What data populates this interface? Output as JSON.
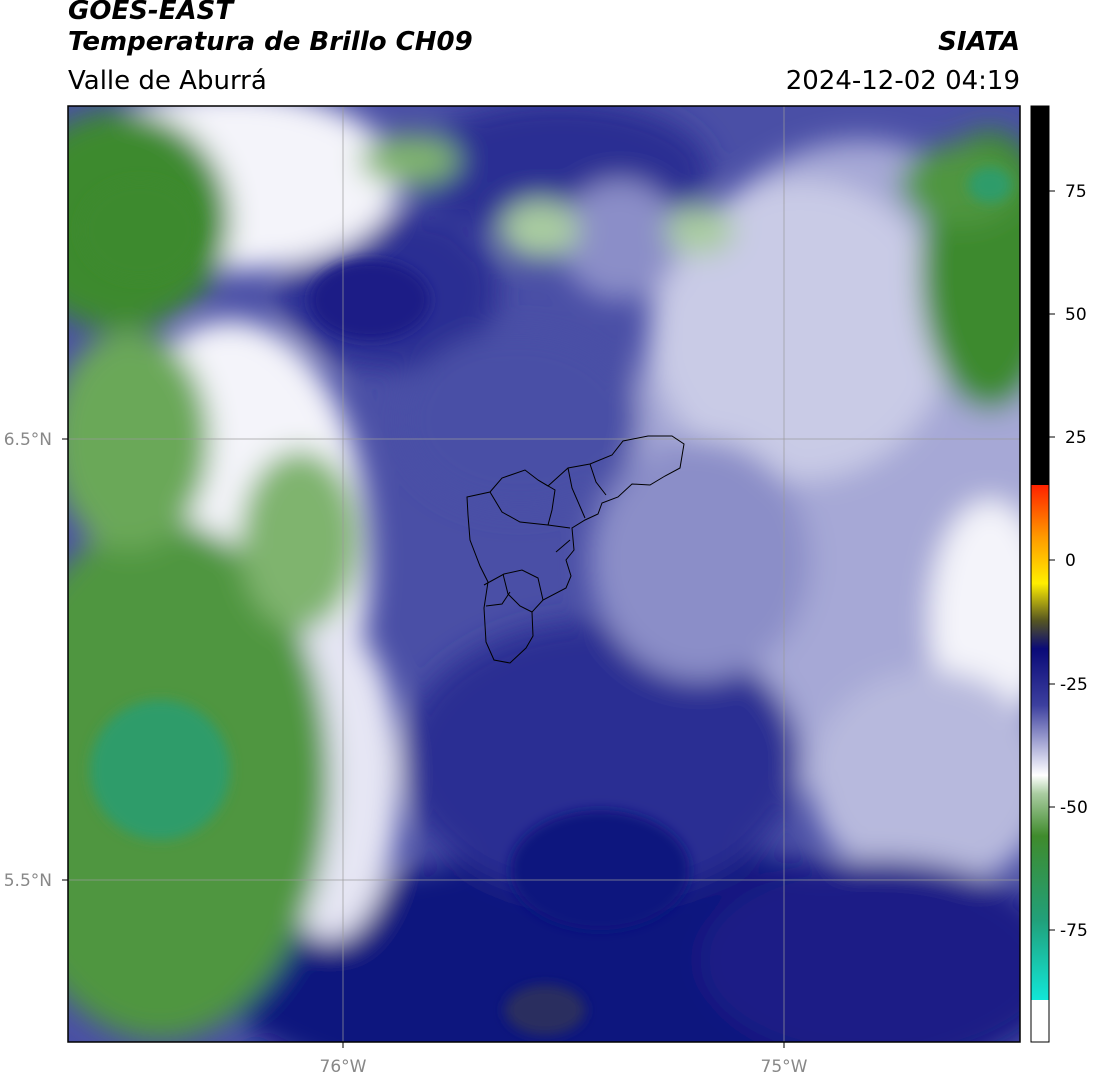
{
  "header": {
    "satellite": "GOES-EAST",
    "product": "Temperatura de Brillo CH09",
    "region": "Valle de Aburrá",
    "organization": "SIATA",
    "datetime": "2024-12-02 04:19"
  },
  "axes": {
    "lat_labels": [
      "6.5°N",
      "5.5°N"
    ],
    "lon_labels": [
      "76°W",
      "75°W"
    ]
  },
  "colorbar": {
    "ticks": [
      "75",
      "50",
      "25",
      "0",
      "-25",
      "-50",
      "-75"
    ],
    "colors": {
      "hot": "#000000",
      "red": "#ff2200",
      "orange": "#ff9900",
      "yellow": "#ffee00",
      "olive": "#555522",
      "navy": "#0a0a78",
      "blue": "#3c3f9e",
      "light": "#d8d9ee",
      "white": "#ffffff",
      "green": "#3f8b2c",
      "teal": "#21a07a",
      "cyan": "#12e6d8"
    }
  },
  "map": {
    "colors": {
      "deep_navy": "#11137e",
      "navy": "#2a2e93",
      "mid_blue": "#4a4fa6",
      "periwinkle": "#8b8ec8",
      "pale": "#c9cbe6",
      "white": "#f4f4fa",
      "light_green": "#a9cca0",
      "green": "#4f9640",
      "dark_green": "#3d8a2f",
      "teal_green": "#2e9c6a"
    }
  }
}
